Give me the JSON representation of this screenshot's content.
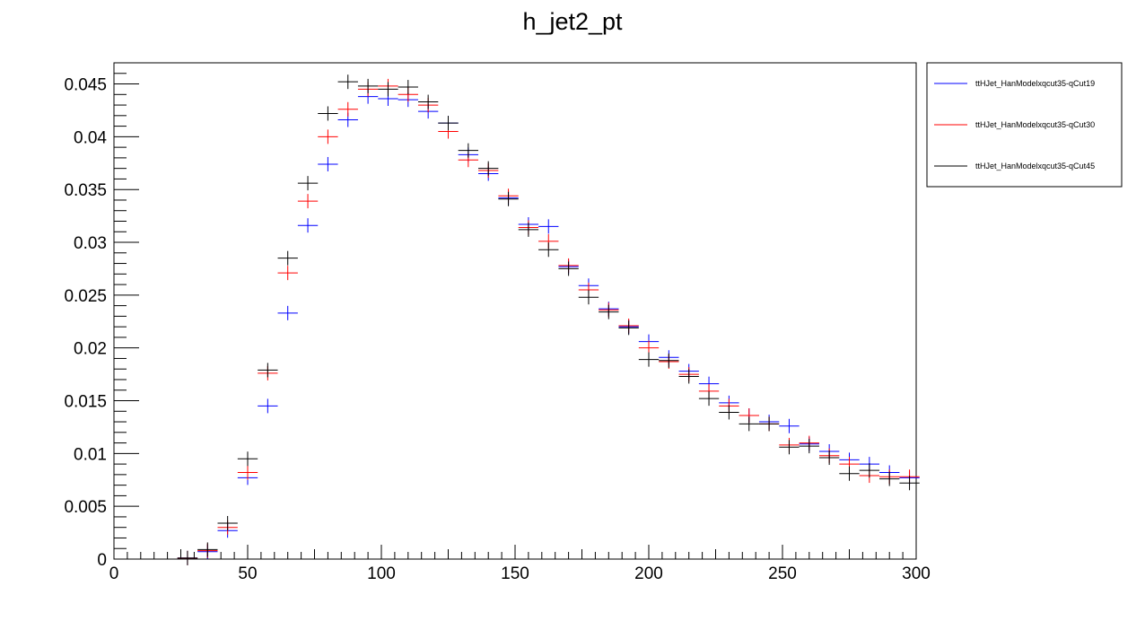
{
  "chart_data": {
    "type": "scatter",
    "title": "h_jet2_pt",
    "xlabel": "",
    "ylabel": "",
    "xlim": [
      0,
      300
    ],
    "ylim": [
      0,
      0.047
    ],
    "x_ticks": [
      0,
      50,
      100,
      150,
      200,
      250,
      300
    ],
    "x_tick_labels": [
      "0",
      "50",
      "100",
      "150",
      "200",
      "250",
      "300"
    ],
    "y_ticks": [
      0,
      0.005,
      0.01,
      0.015,
      0.02,
      0.025,
      0.03,
      0.035,
      0.04,
      0.045
    ],
    "y_tick_labels": [
      "0",
      "0.005",
      "0.01",
      "0.015",
      "0.02",
      "0.025",
      "0.03",
      "0.035",
      "0.04",
      "0.045"
    ],
    "bin_width": 7.5,
    "x": [
      20,
      27.5,
      35,
      42.5,
      50,
      57.5,
      65,
      72.5,
      80,
      87.5,
      95,
      102.5,
      110,
      117.5,
      125,
      132.5,
      140,
      147.5,
      155,
      162.5,
      170,
      177.5,
      185,
      192.5,
      200,
      207.5,
      215,
      222.5,
      230,
      237.5,
      245,
      252.5,
      260,
      267.5,
      275,
      282.5,
      290,
      297.5
    ],
    "legend_position": "top-right",
    "grid": false,
    "series": [
      {
        "name": "ttHJet_HanModelxqcut35-qCut19",
        "color": "#0000ff",
        "values": [
          0.0,
          0.0001,
          0.0007,
          0.0027,
          0.0077,
          0.0145,
          0.0233,
          0.0316,
          0.0374,
          0.0416,
          0.0438,
          0.0436,
          0.0435,
          0.0424,
          0.0413,
          0.0383,
          0.0365,
          0.0342,
          0.0317,
          0.0315,
          0.0277,
          0.0259,
          0.0237,
          0.022,
          0.0206,
          0.0191,
          0.0178,
          0.0166,
          0.0148,
          0.0136,
          0.013,
          0.0126,
          0.0109,
          0.0102,
          0.0094,
          0.009,
          0.0082,
          0.0077
        ]
      },
      {
        "name": "ttHJet_HanModelxqcut35-qCut30",
        "color": "#ff0000",
        "values": [
          0.0,
          0.0001,
          0.0008,
          0.003,
          0.0082,
          0.0176,
          0.0271,
          0.0339,
          0.04,
          0.0426,
          0.0445,
          0.0448,
          0.044,
          0.043,
          0.0405,
          0.0378,
          0.0368,
          0.0344,
          0.0314,
          0.0301,
          0.0278,
          0.0255,
          0.0236,
          0.0221,
          0.02,
          0.0187,
          0.0175,
          0.0159,
          0.0145,
          0.0136,
          0.0128,
          0.0108,
          0.011,
          0.0098,
          0.009,
          0.0079,
          0.0078,
          0.0078
        ]
      },
      {
        "name": "ttHJet_HanModelxqcut35-qCut45",
        "color": "#000000",
        "values": [
          0.0,
          0.0001,
          0.0009,
          0.0034,
          0.0095,
          0.0179,
          0.0285,
          0.0356,
          0.0422,
          0.0452,
          0.0448,
          0.0445,
          0.0447,
          0.0433,
          0.0413,
          0.0387,
          0.037,
          0.0341,
          0.0312,
          0.0293,
          0.0275,
          0.0248,
          0.0234,
          0.0219,
          0.0189,
          0.0188,
          0.0173,
          0.0152,
          0.0139,
          0.0128,
          0.0128,
          0.0106,
          0.0107,
          0.0096,
          0.0081,
          0.0084,
          0.0076,
          0.0072
        ]
      }
    ]
  }
}
